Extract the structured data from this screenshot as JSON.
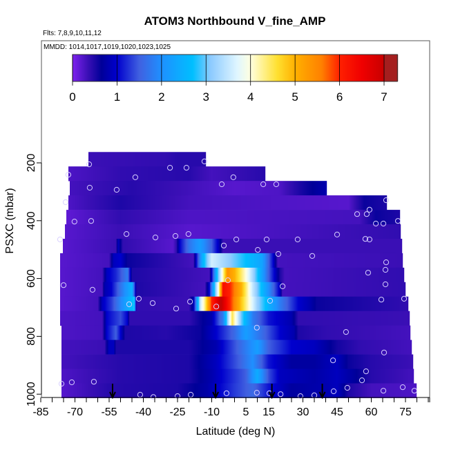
{
  "chart_data": {
    "type": "heatmap",
    "title": "ATOM3 Northbound V_fine_AMP",
    "subtitle_flights": "Flts: 7,8,9,10,11,12",
    "subtitle_dates": "MMDD: 1014,1017,1019,1020,1023,1025",
    "xlabel": "Latitude (deg N)",
    "ylabel": "PSXC (mbar)",
    "xlim": [
      -85,
      85.6
    ],
    "ylim_reversed": [
      1012,
      -222
    ],
    "x_ticks": [
      -85,
      -70,
      -55,
      -40,
      -25,
      -10,
      5,
      15,
      30,
      45,
      60,
      75
    ],
    "x_minor_step": 5,
    "y_ticks": [
      200,
      400,
      600,
      800,
      1000
    ],
    "colorbar": {
      "range": [
        0,
        7.3
      ],
      "ticks": [
        0,
        1,
        2,
        3,
        4,
        5,
        6,
        7
      ],
      "stops": [
        [
          0,
          "#7d22ee"
        ],
        [
          0.35,
          "#3a0fb5"
        ],
        [
          0.65,
          "#000098"
        ],
        [
          1.0,
          "#0000cd"
        ],
        [
          1.5,
          "#4060e0"
        ],
        [
          2.0,
          "#1e90ff"
        ],
        [
          2.7,
          "#00bfff"
        ],
        [
          3.1,
          "#8ccaff"
        ],
        [
          3.7,
          "#dff6ff"
        ],
        [
          4.0,
          "#ffffe0"
        ],
        [
          4.6,
          "#ffe030"
        ],
        [
          5.0,
          "#ffb000"
        ],
        [
          5.6,
          "#ff8000"
        ],
        [
          6.0,
          "#ff2000"
        ],
        [
          6.5,
          "#f00000"
        ],
        [
          7.0,
          "#c80000"
        ],
        [
          7.3,
          "#a51e1e"
        ]
      ]
    },
    "rows": [
      {
        "p": [
          162.5,
          212.5
        ],
        "lat": [
          -64.1,
          -12.6
        ],
        "knots": [
          [
            -64,
            0.35
          ],
          [
            -30,
            0.4
          ],
          [
            -25,
            0.45
          ],
          [
            -13,
            0.45
          ]
        ]
      },
      {
        "p": [
          212.5,
          262.5
        ],
        "lat": [
          -72.9,
          13.6
        ],
        "knots": [
          [
            -73,
            0.25
          ],
          [
            -50,
            0.4
          ],
          [
            -20,
            0.45
          ],
          [
            -10,
            0.3
          ],
          [
            13.6,
            0.45
          ]
        ]
      },
      {
        "p": [
          262.5,
          312.5
        ],
        "lat": [
          -72.3,
          40.5
        ],
        "knots": [
          [
            -72,
            0.3
          ],
          [
            -45,
            0.45
          ],
          [
            -25,
            0.35
          ],
          [
            0,
            0.2
          ],
          [
            20,
            0.25
          ],
          [
            30,
            0.55
          ],
          [
            40.5,
            0.8
          ]
        ]
      },
      {
        "p": [
          312.5,
          362.5
        ],
        "lat": [
          -72.9,
          66.8
        ],
        "knots": [
          [
            -73,
            0.25
          ],
          [
            -50,
            0.5
          ],
          [
            -20,
            0.3
          ],
          [
            50,
            0.2
          ],
          [
            57,
            0.6
          ],
          [
            67,
            0.5
          ]
        ]
      },
      {
        "p": [
          362.5,
          412.5
        ],
        "lat": [
          -73.8,
          72.5
        ],
        "knots": [
          [
            -74,
            0.15
          ],
          [
            -50,
            0.4
          ],
          [
            -20,
            0.25
          ],
          [
            55,
            0.3
          ],
          [
            62,
            0.6
          ],
          [
            72.5,
            0.5
          ]
        ]
      },
      {
        "p": [
          412.5,
          462.5
        ],
        "lat": [
          -74.4,
          72.9
        ],
        "knots": [
          [
            -74,
            0.2
          ],
          [
            -50,
            0.35
          ],
          [
            -20,
            0.2
          ],
          [
            50,
            0.35
          ],
          [
            72.9,
            0.4
          ]
        ]
      },
      {
        "p": [
          462.5,
          512.5
        ],
        "lat": [
          -75.3,
          73.5
        ],
        "knots": [
          [
            -75,
            0.2
          ],
          [
            -52,
            0.35
          ],
          [
            -51,
            0.9
          ],
          [
            -49,
            0.4
          ],
          [
            -27,
            0.2
          ],
          [
            -25.5,
            0.4
          ],
          [
            -24,
            1
          ],
          [
            -20,
            1.7
          ],
          [
            -15,
            2.2
          ],
          [
            -10,
            1.5
          ],
          [
            -7,
            0.9
          ],
          [
            -5,
            0.35
          ],
          [
            73.5,
            0.35
          ]
        ]
      },
      {
        "p": [
          512.5,
          562.5
        ],
        "lat": [
          -76.5,
          73.8
        ],
        "knots": [
          [
            -76,
            0.2
          ],
          [
            -55,
            0.3
          ],
          [
            -53,
            0.9
          ],
          [
            -50,
            1
          ],
          [
            -47,
            0.6
          ],
          [
            -18,
            0.3
          ],
          [
            -17,
            0.9
          ],
          [
            -14,
            2.5
          ],
          [
            -10,
            3.6
          ],
          [
            -5,
            3.3
          ],
          [
            5,
            2.7
          ],
          [
            12,
            2.3
          ],
          [
            17,
            1
          ],
          [
            19,
            0.3
          ],
          [
            73.8,
            0.35
          ]
        ]
      },
      {
        "p": [
          562.5,
          612.5
        ],
        "lat": [
          -76.5,
          74.4
        ],
        "knots": [
          [
            -76.5,
            0.2
          ],
          [
            -58,
            0.3
          ],
          [
            -56,
            0.9
          ],
          [
            -52,
            1.2
          ],
          [
            -47,
            1.8
          ],
          [
            -45,
            0.5
          ],
          [
            -11,
            0.3
          ],
          [
            -10,
            1
          ],
          [
            -8,
            2.5
          ],
          [
            -5,
            4.2
          ],
          [
            -3,
            5.4
          ],
          [
            0,
            5
          ],
          [
            5,
            4
          ],
          [
            10,
            2.8
          ],
          [
            15,
            1.5
          ],
          [
            20,
            0.5
          ],
          [
            22,
            0.3
          ],
          [
            74,
            0.4
          ]
        ]
      },
      {
        "p": [
          612.5,
          662.5
        ],
        "lat": [
          -76.5,
          75.0
        ],
        "knots": [
          [
            -76.5,
            0.2
          ],
          [
            -58,
            0.3
          ],
          [
            -57,
            0.8
          ],
          [
            -54,
            1
          ],
          [
            -50,
            1.7
          ],
          [
            -45,
            2.5
          ],
          [
            -43,
            0.5
          ],
          [
            -13,
            0.3
          ],
          [
            -11,
            1
          ],
          [
            -9,
            2.6
          ],
          [
            -7,
            4
          ],
          [
            -5,
            6.3
          ],
          [
            -2,
            6
          ],
          [
            3,
            5
          ],
          [
            8,
            3.5
          ],
          [
            15,
            2
          ],
          [
            20,
            0.9
          ],
          [
            21,
            0.3
          ],
          [
            75,
            0.4
          ]
        ]
      },
      {
        "p": [
          662.5,
          712.5
        ],
        "lat": [
          -76.5,
          76.2
        ],
        "knots": [
          [
            -76.5,
            0.2
          ],
          [
            -60,
            0.3
          ],
          [
            -58,
            0.9
          ],
          [
            -54,
            1.3
          ],
          [
            -48,
            2.2
          ],
          [
            -44,
            2.8
          ],
          [
            -43,
            0.4
          ],
          [
            -20,
            0.35
          ],
          [
            -18,
            0.8
          ],
          [
            -15,
            3.5
          ],
          [
            -13,
            4.3
          ],
          [
            -10,
            6
          ],
          [
            -6,
            7.1
          ],
          [
            -2,
            6
          ],
          [
            3,
            4.8
          ],
          [
            10,
            3.2
          ],
          [
            20,
            1.8
          ],
          [
            28,
            1
          ],
          [
            33,
            0.8
          ],
          [
            36,
            0.6
          ],
          [
            76,
            0.4
          ]
        ]
      },
      {
        "p": [
          712.5,
          762.5
        ],
        "lat": [
          -76.5,
          76.8
        ],
        "knots": [
          [
            -76.5,
            0.25
          ],
          [
            -58,
            0.3
          ],
          [
            -56,
            1
          ],
          [
            -50,
            1.4
          ],
          [
            -47,
            1
          ],
          [
            -46,
            0.4
          ],
          [
            -20,
            0.4
          ],
          [
            -10,
            0.8
          ],
          [
            -5,
            1.8
          ],
          [
            -1,
            4.5
          ],
          [
            3,
            3
          ],
          [
            8,
            1.8
          ],
          [
            15,
            1.1
          ],
          [
            25,
            0.8
          ],
          [
            28,
            0.4
          ],
          [
            77,
            0.35
          ]
        ]
      },
      {
        "p": [
          762.5,
          812.5
        ],
        "lat": [
          -75.9,
          77.1
        ],
        "knots": [
          [
            -76,
            0.25
          ],
          [
            -58,
            0.3
          ],
          [
            -56,
            1
          ],
          [
            -52,
            1.5
          ],
          [
            -48,
            0.5
          ],
          [
            -30,
            0.45
          ],
          [
            -15,
            0.6
          ],
          [
            -8,
            1
          ],
          [
            0,
            1.6
          ],
          [
            5,
            2.2
          ],
          [
            10,
            1.8
          ],
          [
            20,
            1
          ],
          [
            26,
            0.8
          ],
          [
            28,
            0.5
          ],
          [
            40,
            0.4
          ],
          [
            77,
            0.3
          ]
        ]
      },
      {
        "p": [
          812.5,
          862.5
        ],
        "lat": [
          -75.9,
          77.7
        ],
        "knots": [
          [
            -76,
            0.3
          ],
          [
            -57,
            0.35
          ],
          [
            -55,
            0.9
          ],
          [
            -53,
            0.9
          ],
          [
            -52,
            0.5
          ],
          [
            -20,
            0.5
          ],
          [
            -8,
            0.8
          ],
          [
            5,
            1.8
          ],
          [
            10,
            2.2
          ],
          [
            15,
            1.5
          ],
          [
            25,
            1
          ],
          [
            35,
            0.9
          ],
          [
            45,
            0.55
          ],
          [
            55,
            0.4
          ],
          [
            78,
            0.3
          ]
        ]
      },
      {
        "p": [
          862.5,
          912.5
        ],
        "lat": [
          -75.9,
          78.3
        ],
        "knots": [
          [
            -76,
            0.3
          ],
          [
            -50,
            0.45
          ],
          [
            -20,
            0.5
          ],
          [
            -8,
            0.9
          ],
          [
            2,
            1.5
          ],
          [
            8,
            2
          ],
          [
            15,
            1.1
          ],
          [
            25,
            0.7
          ],
          [
            35,
            0.7
          ],
          [
            45,
            0.9
          ],
          [
            50,
            0.6
          ],
          [
            60,
            0.45
          ],
          [
            78,
            0.35
          ]
        ]
      },
      {
        "p": [
          912.5,
          962.5
        ],
        "lat": [
          -75.9,
          78.6
        ],
        "knots": [
          [
            -76,
            0.25
          ],
          [
            -50,
            0.45
          ],
          [
            -20,
            0.5
          ],
          [
            -10,
            0.8
          ],
          [
            5,
            1.5
          ],
          [
            10,
            2.4
          ],
          [
            15,
            1.4
          ],
          [
            20,
            0.9
          ],
          [
            35,
            0.75
          ],
          [
            45,
            0.9
          ],
          [
            52,
            0.7
          ],
          [
            60,
            0.45
          ],
          [
            79,
            0.3
          ]
        ]
      },
      {
        "p": [
          962.5,
          1012.5
        ],
        "lat": [
          -75.9,
          79.8
        ],
        "knots": [
          [
            -76,
            0.2
          ],
          [
            -55,
            0.45
          ],
          [
            -25,
            0.5
          ],
          [
            -12,
            0.75
          ],
          [
            0,
            1.3
          ],
          [
            8,
            1.6
          ],
          [
            15,
            1.1
          ],
          [
            25,
            0.7
          ],
          [
            40,
            0.8
          ],
          [
            45,
            0.9
          ],
          [
            50,
            0.5
          ],
          [
            60,
            0.3
          ],
          [
            80,
            0.25
          ]
        ]
      }
    ],
    "observations": [
      [
        -63.8,
        205
      ],
      [
        -13.2,
        195
      ],
      [
        -28.3,
        217
      ],
      [
        -21.1,
        217
      ],
      [
        -72.9,
        241
      ],
      [
        -43.5,
        250
      ],
      [
        -63.5,
        286
      ],
      [
        -51.7,
        293
      ],
      [
        -74.1,
        336
      ],
      [
        -70.2,
        403
      ],
      [
        -62.9,
        401
      ],
      [
        -47.4,
        446
      ],
      [
        -34.7,
        458
      ],
      [
        -25.9,
        453
      ],
      [
        -20.2,
        446
      ],
      [
        -4.7,
        486
      ],
      [
        -76.5,
        465
      ],
      [
        -0.5,
        250
      ],
      [
        -5.6,
        274
      ],
      [
        -2.9,
        606
      ],
      [
        18.3,
        274
      ],
      [
        12.6,
        274
      ],
      [
        66.5,
        329
      ],
      [
        59.2,
        362
      ],
      [
        53.8,
        377
      ],
      [
        58.0,
        377
      ],
      [
        62.0,
        410
      ],
      [
        65.3,
        410
      ],
      [
        71.7,
        401
      ],
      [
        45,
        448
      ],
      [
        14.1,
        465
      ],
      [
        27.7,
        465
      ],
      [
        57.4,
        463
      ],
      [
        59.2,
        465
      ],
      [
        19.2,
        515
      ],
      [
        34.1,
        522
      ],
      [
        66.5,
        544
      ],
      [
        66.2,
        570
      ],
      [
        58.6,
        580
      ],
      [
        66.2,
        620
      ],
      [
        21.1,
        627
      ],
      [
        0.8,
        465
      ],
      [
        10.2,
        501
      ],
      [
        -19.5,
        680
      ],
      [
        -25.6,
        704
      ],
      [
        -8,
        697
      ],
      [
        15.6,
        677
      ],
      [
        9.8,
        770
      ],
      [
        -75,
        623
      ],
      [
        -62.3,
        639
      ],
      [
        -42,
        670
      ],
      [
        -46.2,
        689
      ],
      [
        -35.9,
        685
      ],
      [
        -75.9,
        964
      ],
      [
        -71.4,
        959
      ],
      [
        -61.7,
        957
      ],
      [
        -41.4,
        1002
      ],
      [
        -35.6,
        1010
      ],
      [
        -25,
        1007
      ],
      [
        -19.2,
        1002
      ],
      [
        -3.5,
        997
      ],
      [
        64.4,
        673
      ],
      [
        74.4,
        670
      ],
      [
        48.9,
        785
      ],
      [
        65.6,
        856
      ],
      [
        43.2,
        883
      ],
      [
        57.7,
        921
      ],
      [
        55.9,
        952
      ],
      [
        9.8,
        995
      ],
      [
        15.3,
        997
      ],
      [
        20.2,
        1000
      ],
      [
        28.9,
        1007
      ],
      [
        35,
        1004
      ],
      [
        43.5,
        990
      ],
      [
        49.5,
        978
      ],
      [
        65.3,
        988
      ],
      [
        73.8,
        976
      ],
      [
        78.9,
        988
      ]
    ],
    "arrows_lat": [
      -53.5,
      -8.3,
      16.4,
      38.5
    ]
  }
}
